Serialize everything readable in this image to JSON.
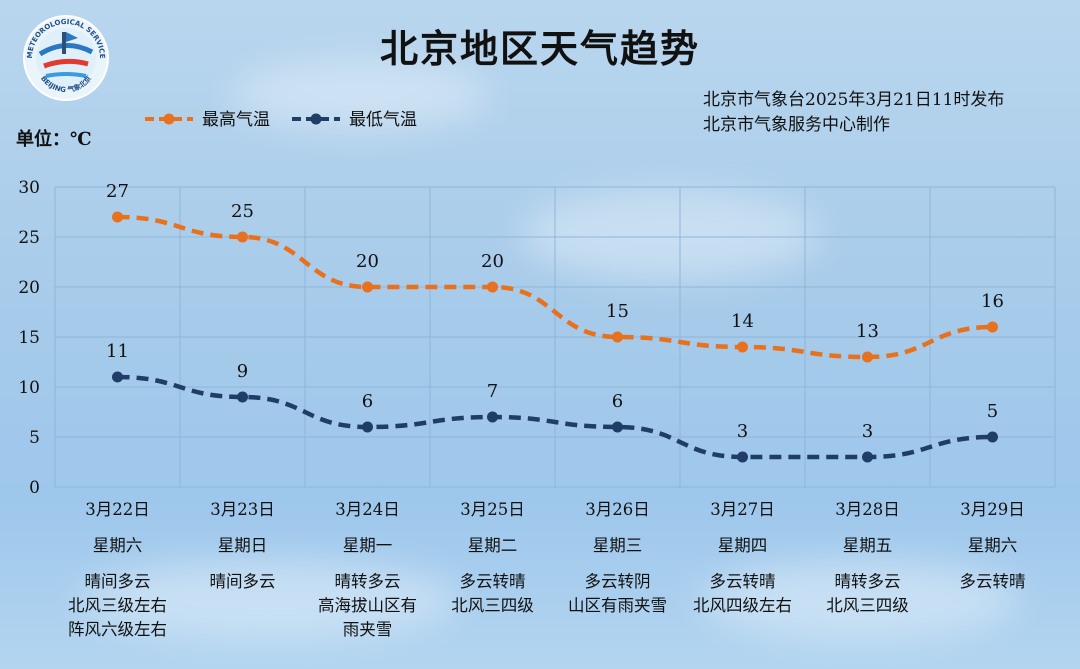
{
  "header": {
    "title": "北京地区天气趋势",
    "publisher_line1": "北京市气象台2025年3月21日11时发布",
    "publisher_line2": "北京市气象服务中心制作",
    "unit": "单位：℃"
  },
  "logo": {
    "text_top": "METEOROLOGICAL SERVICE",
    "text_bottom": "BEIJING 气象北京"
  },
  "chart_data": {
    "type": "line",
    "categories": [
      "3月22日",
      "3月23日",
      "3月24日",
      "3月25日",
      "3月26日",
      "3月27日",
      "3月28日",
      "3月29日"
    ],
    "series": [
      {
        "name": "最高气温",
        "values": [
          27,
          25,
          20,
          20,
          15,
          14,
          13,
          16
        ],
        "color": "#e8711e"
      },
      {
        "name": "最低气温",
        "values": [
          11,
          9,
          6,
          7,
          6,
          3,
          3,
          5
        ],
        "color": "#1f3d66"
      }
    ],
    "ylim": [
      0,
      30
    ],
    "yticks": [
      "0",
      "5",
      "10",
      "15",
      "20",
      "25",
      "30"
    ],
    "grid": true,
    "legend": "top-left",
    "line_style": "dashed",
    "title": "北京地区天气趋势",
    "ylabel": "单位：℃"
  },
  "days": [
    {
      "date": "3月22日",
      "weekday": "星期六",
      "desc": [
        "晴间多云",
        "北风三级左右",
        "阵风六级左右"
      ]
    },
    {
      "date": "3月23日",
      "weekday": "星期日",
      "desc": [
        "晴间多云"
      ]
    },
    {
      "date": "3月24日",
      "weekday": "星期一",
      "desc": [
        "晴转多云",
        "高海拔山区有",
        "雨夹雪"
      ]
    },
    {
      "date": "3月25日",
      "weekday": "星期二",
      "desc": [
        "多云转晴",
        "北风三四级"
      ]
    },
    {
      "date": "3月26日",
      "weekday": "星期三",
      "desc": [
        "多云转阴",
        "山区有雨夹雪"
      ]
    },
    {
      "date": "3月27日",
      "weekday": "星期四",
      "desc": [
        "多云转晴",
        "北风四级左右"
      ]
    },
    {
      "date": "3月28日",
      "weekday": "星期五",
      "desc": [
        "晴转多云",
        "北风三四级"
      ]
    },
    {
      "date": "3月29日",
      "weekday": "星期六",
      "desc": [
        "多云转晴"
      ]
    }
  ]
}
